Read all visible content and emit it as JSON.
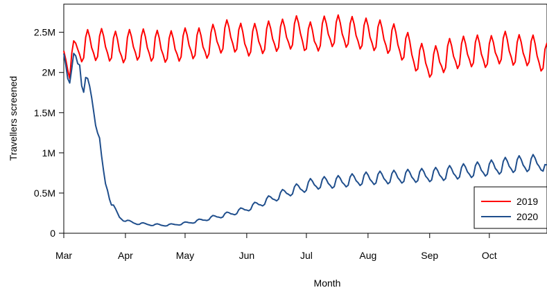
{
  "chart_data": {
    "type": "line",
    "title": "",
    "xlabel": "Month",
    "ylabel": "Travellers screened",
    "x_range_days": [
      0,
      243
    ],
    "y_range": [
      0,
      2850000
    ],
    "x_ticks": [
      {
        "day": 0,
        "label": "Mar"
      },
      {
        "day": 31,
        "label": "Apr"
      },
      {
        "day": 61,
        "label": "May"
      },
      {
        "day": 92,
        "label": "Jun"
      },
      {
        "day": 122,
        "label": "Jul"
      },
      {
        "day": 153,
        "label": "Aug"
      },
      {
        "day": 184,
        "label": "Sep"
      },
      {
        "day": 214,
        "label": "Oct"
      }
    ],
    "y_ticks": [
      {
        "value": 0,
        "label": "0"
      },
      {
        "value": 500000,
        "label": "0.5M"
      },
      {
        "value": 1000000,
        "label": "1M"
      },
      {
        "value": 1500000,
        "label": "1.5M"
      },
      {
        "value": 2000000,
        "label": "2M"
      },
      {
        "value": 2500000,
        "label": "2.5M"
      }
    ],
    "legend_position": "bottom-right",
    "series": [
      {
        "name": "2019",
        "color": "#ff0000",
        "anchors": [
          [
            0,
            2280000
          ],
          [
            2,
            2200000
          ],
          [
            3,
            2050000
          ],
          [
            7,
            2300000
          ],
          [
            14,
            2320000
          ],
          [
            21,
            2330000
          ],
          [
            28,
            2280000
          ],
          [
            35,
            2330000
          ],
          [
            42,
            2320000
          ],
          [
            49,
            2300000
          ],
          [
            56,
            2300000
          ],
          [
            63,
            2350000
          ],
          [
            70,
            2330000
          ],
          [
            77,
            2400000
          ],
          [
            84,
            2450000
          ],
          [
            91,
            2370000
          ],
          [
            98,
            2400000
          ],
          [
            105,
            2430000
          ],
          [
            112,
            2450000
          ],
          [
            119,
            2500000
          ],
          [
            122,
            2420000
          ],
          [
            126,
            2400000
          ],
          [
            130,
            2480000
          ],
          [
            137,
            2500000
          ],
          [
            144,
            2480000
          ],
          [
            151,
            2460000
          ],
          [
            158,
            2440000
          ],
          [
            165,
            2400000
          ],
          [
            172,
            2300000
          ],
          [
            179,
            2150000
          ],
          [
            186,
            2100000
          ],
          [
            193,
            2200000
          ],
          [
            200,
            2230000
          ],
          [
            207,
            2250000
          ],
          [
            214,
            2230000
          ],
          [
            221,
            2300000
          ],
          [
            228,
            2250000
          ],
          [
            235,
            2260000
          ],
          [
            243,
            2150000
          ]
        ],
        "weekly_amplitude": 230000
      },
      {
        "name": "2020",
        "color": "#1f4e8c",
        "anchors": [
          [
            0,
            2250000
          ],
          [
            2,
            2150000
          ],
          [
            4,
            1900000
          ],
          [
            6,
            2050000
          ],
          [
            8,
            2200000
          ],
          [
            10,
            1900000
          ],
          [
            12,
            1700000
          ],
          [
            14,
            1700000
          ],
          [
            16,
            1500000
          ],
          [
            17,
            1350000
          ],
          [
            18,
            1100000
          ],
          [
            19,
            850000
          ],
          [
            20,
            720000
          ],
          [
            21,
            620000
          ],
          [
            22,
            560000
          ],
          [
            23,
            470000
          ],
          [
            24,
            380000
          ],
          [
            26,
            270000
          ],
          [
            28,
            200000
          ],
          [
            30,
            170000
          ],
          [
            33,
            140000
          ],
          [
            36,
            125000
          ],
          [
            40,
            115000
          ],
          [
            45,
            105000
          ],
          [
            50,
            100000
          ],
          [
            55,
            105000
          ],
          [
            60,
            120000
          ],
          [
            65,
            140000
          ],
          [
            70,
            165000
          ],
          [
            75,
            195000
          ],
          [
            80,
            220000
          ],
          [
            85,
            250000
          ],
          [
            90,
            285000
          ],
          [
            95,
            330000
          ],
          [
            100,
            380000
          ],
          [
            105,
            430000
          ],
          [
            110,
            480000
          ],
          [
            115,
            530000
          ],
          [
            120,
            560000
          ],
          [
            124,
            600000
          ],
          [
            130,
            620000
          ],
          [
            137,
            630000
          ],
          [
            144,
            650000
          ],
          [
            151,
            670000
          ],
          [
            158,
            680000
          ],
          [
            165,
            690000
          ],
          [
            172,
            700000
          ],
          [
            179,
            710000
          ],
          [
            186,
            720000
          ],
          [
            193,
            740000
          ],
          [
            200,
            760000
          ],
          [
            207,
            780000
          ],
          [
            214,
            800000
          ],
          [
            221,
            830000
          ],
          [
            228,
            850000
          ],
          [
            235,
            860000
          ],
          [
            240,
            880000
          ],
          [
            243,
            750000
          ]
        ],
        "weekly_amplitude_fraction": 0.14
      }
    ]
  }
}
